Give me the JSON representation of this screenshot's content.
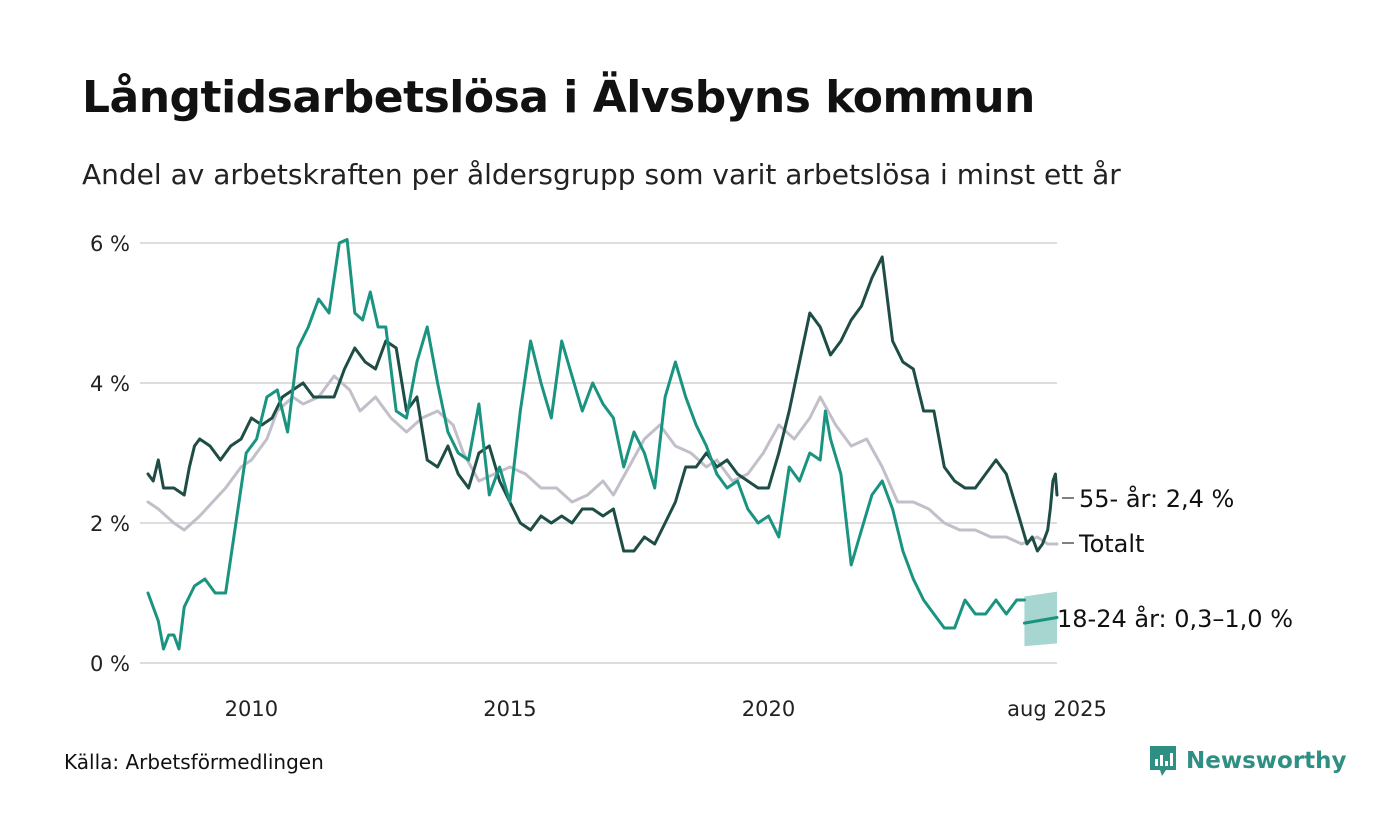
{
  "title": "Långtidsarbetslösa i Älvsbyns kommun",
  "subtitle": "Andel av arbetskraften per åldersgrupp som varit arbetslösa i minst ett år",
  "source": "Källa: Arbetsförmedlingen",
  "brand": "Newsworthy",
  "colors": {
    "older": "#1e4d45",
    "young": "#1a9480",
    "total": "#c2bfca",
    "band": "#a6d6cf",
    "grid": "#dddddd",
    "brand": "#2f8f83"
  },
  "chart_data": {
    "type": "line",
    "title": "Långtidsarbetslösa i Älvsbyns kommun",
    "ylim": [
      0,
      6
    ],
    "yticks": [
      0,
      2,
      4,
      6
    ],
    "ytick_labels": [
      "0 %",
      "2 %",
      "4 %",
      "6 %"
    ],
    "xlim": [
      2008.0,
      2025.58
    ],
    "xticks": [
      2010,
      2015,
      2020,
      2025.58
    ],
    "xtick_labels": [
      "2010",
      "2015",
      "2020",
      "aug 2025"
    ],
    "grid": true,
    "legend": "end-labels",
    "series": [
      {
        "name": "Totalt",
        "end_label": "Totalt",
        "color_key": "total",
        "points": [
          [
            2008.0,
            2.3
          ],
          [
            2008.2,
            2.2
          ],
          [
            2008.5,
            2.0
          ],
          [
            2008.7,
            1.9
          ],
          [
            2009.0,
            2.1
          ],
          [
            2009.5,
            2.5
          ],
          [
            2009.8,
            2.8
          ],
          [
            2010.0,
            2.9
          ],
          [
            2010.3,
            3.2
          ],
          [
            2010.5,
            3.6
          ],
          [
            2010.8,
            3.8
          ],
          [
            2011.0,
            3.7
          ],
          [
            2011.3,
            3.8
          ],
          [
            2011.6,
            4.1
          ],
          [
            2011.9,
            3.9
          ],
          [
            2012.1,
            3.6
          ],
          [
            2012.4,
            3.8
          ],
          [
            2012.7,
            3.5
          ],
          [
            2013.0,
            3.3
          ],
          [
            2013.3,
            3.5
          ],
          [
            2013.6,
            3.6
          ],
          [
            2013.9,
            3.4
          ],
          [
            2014.1,
            3.0
          ],
          [
            2014.4,
            2.6
          ],
          [
            2014.7,
            2.7
          ],
          [
            2015.0,
            2.8
          ],
          [
            2015.3,
            2.7
          ],
          [
            2015.6,
            2.5
          ],
          [
            2015.9,
            2.5
          ],
          [
            2016.2,
            2.3
          ],
          [
            2016.5,
            2.4
          ],
          [
            2016.8,
            2.6
          ],
          [
            2017.0,
            2.4
          ],
          [
            2017.3,
            2.8
          ],
          [
            2017.6,
            3.2
          ],
          [
            2017.9,
            3.4
          ],
          [
            2018.2,
            3.1
          ],
          [
            2018.5,
            3.0
          ],
          [
            2018.8,
            2.8
          ],
          [
            2019.0,
            2.9
          ],
          [
            2019.3,
            2.6
          ],
          [
            2019.6,
            2.7
          ],
          [
            2019.9,
            3.0
          ],
          [
            2020.2,
            3.4
          ],
          [
            2020.5,
            3.2
          ],
          [
            2020.8,
            3.5
          ],
          [
            2021.0,
            3.8
          ],
          [
            2021.3,
            3.4
          ],
          [
            2021.6,
            3.1
          ],
          [
            2021.9,
            3.2
          ],
          [
            2022.2,
            2.8
          ],
          [
            2022.5,
            2.3
          ],
          [
            2022.8,
            2.3
          ],
          [
            2023.1,
            2.2
          ],
          [
            2023.4,
            2.0
          ],
          [
            2023.7,
            1.9
          ],
          [
            2024.0,
            1.9
          ],
          [
            2024.3,
            1.8
          ],
          [
            2024.6,
            1.8
          ],
          [
            2024.9,
            1.7
          ],
          [
            2025.2,
            1.8
          ],
          [
            2025.4,
            1.7
          ],
          [
            2025.58,
            1.7
          ]
        ]
      },
      {
        "name": "55- år",
        "end_label": "55- år: 2,4 %",
        "color_key": "older",
        "points": [
          [
            2008.0,
            2.7
          ],
          [
            2008.1,
            2.6
          ],
          [
            2008.2,
            2.9
          ],
          [
            2008.3,
            2.5
          ],
          [
            2008.5,
            2.5
          ],
          [
            2008.7,
            2.4
          ],
          [
            2008.8,
            2.8
          ],
          [
            2008.9,
            3.1
          ],
          [
            2009.0,
            3.2
          ],
          [
            2009.2,
            3.1
          ],
          [
            2009.4,
            2.9
          ],
          [
            2009.6,
            3.1
          ],
          [
            2009.8,
            3.2
          ],
          [
            2010.0,
            3.5
          ],
          [
            2010.2,
            3.4
          ],
          [
            2010.4,
            3.5
          ],
          [
            2010.6,
            3.8
          ],
          [
            2010.8,
            3.9
          ],
          [
            2011.0,
            4.0
          ],
          [
            2011.2,
            3.8
          ],
          [
            2011.4,
            3.8
          ],
          [
            2011.6,
            3.8
          ],
          [
            2011.8,
            4.2
          ],
          [
            2012.0,
            4.5
          ],
          [
            2012.2,
            4.3
          ],
          [
            2012.4,
            4.2
          ],
          [
            2012.6,
            4.6
          ],
          [
            2012.8,
            4.5
          ],
          [
            2013.0,
            3.6
          ],
          [
            2013.2,
            3.8
          ],
          [
            2013.4,
            2.9
          ],
          [
            2013.6,
            2.8
          ],
          [
            2013.8,
            3.1
          ],
          [
            2014.0,
            2.7
          ],
          [
            2014.2,
            2.5
          ],
          [
            2014.4,
            3.0
          ],
          [
            2014.6,
            3.1
          ],
          [
            2014.8,
            2.6
          ],
          [
            2015.0,
            2.3
          ],
          [
            2015.2,
            2.0
          ],
          [
            2015.4,
            1.9
          ],
          [
            2015.6,
            2.1
          ],
          [
            2015.8,
            2.0
          ],
          [
            2016.0,
            2.1
          ],
          [
            2016.2,
            2.0
          ],
          [
            2016.4,
            2.2
          ],
          [
            2016.6,
            2.2
          ],
          [
            2016.8,
            2.1
          ],
          [
            2017.0,
            2.2
          ],
          [
            2017.2,
            1.6
          ],
          [
            2017.4,
            1.6
          ],
          [
            2017.6,
            1.8
          ],
          [
            2017.8,
            1.7
          ],
          [
            2018.0,
            2.0
          ],
          [
            2018.2,
            2.3
          ],
          [
            2018.4,
            2.8
          ],
          [
            2018.6,
            2.8
          ],
          [
            2018.8,
            3.0
          ],
          [
            2019.0,
            2.8
          ],
          [
            2019.2,
            2.9
          ],
          [
            2019.4,
            2.7
          ],
          [
            2019.6,
            2.6
          ],
          [
            2019.8,
            2.5
          ],
          [
            2020.0,
            2.5
          ],
          [
            2020.2,
            3.0
          ],
          [
            2020.4,
            3.6
          ],
          [
            2020.6,
            4.3
          ],
          [
            2020.8,
            5.0
          ],
          [
            2021.0,
            4.8
          ],
          [
            2021.2,
            4.4
          ],
          [
            2021.4,
            4.6
          ],
          [
            2021.6,
            4.9
          ],
          [
            2021.8,
            5.1
          ],
          [
            2022.0,
            5.5
          ],
          [
            2022.2,
            5.8
          ],
          [
            2022.4,
            4.6
          ],
          [
            2022.6,
            4.3
          ],
          [
            2022.8,
            4.2
          ],
          [
            2023.0,
            3.6
          ],
          [
            2023.2,
            3.6
          ],
          [
            2023.4,
            2.8
          ],
          [
            2023.6,
            2.6
          ],
          [
            2023.8,
            2.5
          ],
          [
            2024.0,
            2.5
          ],
          [
            2024.2,
            2.7
          ],
          [
            2024.4,
            2.9
          ],
          [
            2024.6,
            2.7
          ],
          [
            2024.8,
            2.2
          ],
          [
            2025.0,
            1.7
          ],
          [
            2025.1,
            1.8
          ],
          [
            2025.2,
            1.6
          ],
          [
            2025.3,
            1.7
          ],
          [
            2025.4,
            1.9
          ],
          [
            2025.45,
            2.2
          ],
          [
            2025.5,
            2.6
          ],
          [
            2025.55,
            2.7
          ],
          [
            2025.58,
            2.4
          ]
        ]
      },
      {
        "name": "18-24 år",
        "end_label": "18-24 år: 0,3–1,0 %",
        "color_key": "young",
        "points": [
          [
            2008.0,
            1.0
          ],
          [
            2008.2,
            0.6
          ],
          [
            2008.3,
            0.2
          ],
          [
            2008.4,
            0.4
          ],
          [
            2008.5,
            0.4
          ],
          [
            2008.6,
            0.2
          ],
          [
            2008.7,
            0.8
          ],
          [
            2008.9,
            1.1
          ],
          [
            2009.1,
            1.2
          ],
          [
            2009.3,
            1.0
          ],
          [
            2009.5,
            1.0
          ],
          [
            2009.7,
            2.0
          ],
          [
            2009.9,
            3.0
          ],
          [
            2010.1,
            3.2
          ],
          [
            2010.3,
            3.8
          ],
          [
            2010.5,
            3.9
          ],
          [
            2010.7,
            3.3
          ],
          [
            2010.9,
            4.5
          ],
          [
            2011.1,
            4.8
          ],
          [
            2011.3,
            5.2
          ],
          [
            2011.5,
            5.0
          ],
          [
            2011.7,
            6.0
          ],
          [
            2011.85,
            6.05
          ],
          [
            2012.0,
            5.0
          ],
          [
            2012.15,
            4.9
          ],
          [
            2012.3,
            5.3
          ],
          [
            2012.45,
            4.8
          ],
          [
            2012.6,
            4.8
          ],
          [
            2012.8,
            3.6
          ],
          [
            2013.0,
            3.5
          ],
          [
            2013.2,
            4.3
          ],
          [
            2013.4,
            4.8
          ],
          [
            2013.6,
            4.0
          ],
          [
            2013.8,
            3.3
          ],
          [
            2014.0,
            3.0
          ],
          [
            2014.2,
            2.9
          ],
          [
            2014.4,
            3.7
          ],
          [
            2014.6,
            2.4
          ],
          [
            2014.8,
            2.8
          ],
          [
            2015.0,
            2.3
          ],
          [
            2015.2,
            3.6
          ],
          [
            2015.4,
            4.6
          ],
          [
            2015.6,
            4.0
          ],
          [
            2015.8,
            3.5
          ],
          [
            2016.0,
            4.6
          ],
          [
            2016.2,
            4.1
          ],
          [
            2016.4,
            3.6
          ],
          [
            2016.6,
            4.0
          ],
          [
            2016.8,
            3.7
          ],
          [
            2017.0,
            3.5
          ],
          [
            2017.2,
            2.8
          ],
          [
            2017.4,
            3.3
          ],
          [
            2017.6,
            3.0
          ],
          [
            2017.8,
            2.5
          ],
          [
            2018.0,
            3.8
          ],
          [
            2018.2,
            4.3
          ],
          [
            2018.4,
            3.8
          ],
          [
            2018.6,
            3.4
          ],
          [
            2018.8,
            3.1
          ],
          [
            2019.0,
            2.7
          ],
          [
            2019.2,
            2.5
          ],
          [
            2019.4,
            2.6
          ],
          [
            2019.6,
            2.2
          ],
          [
            2019.8,
            2.0
          ],
          [
            2020.0,
            2.1
          ],
          [
            2020.2,
            1.8
          ],
          [
            2020.4,
            2.8
          ],
          [
            2020.6,
            2.6
          ],
          [
            2020.8,
            3.0
          ],
          [
            2021.0,
            2.9
          ],
          [
            2021.1,
            3.6
          ],
          [
            2021.2,
            3.2
          ],
          [
            2021.4,
            2.7
          ],
          [
            2021.6,
            1.4
          ],
          [
            2021.8,
            1.9
          ],
          [
            2022.0,
            2.4
          ],
          [
            2022.2,
            2.6
          ],
          [
            2022.4,
            2.2
          ],
          [
            2022.6,
            1.6
          ],
          [
            2022.8,
            1.2
          ],
          [
            2023.0,
            0.9
          ],
          [
            2023.2,
            0.7
          ],
          [
            2023.4,
            0.5
          ],
          [
            2023.6,
            0.5
          ],
          [
            2023.8,
            0.9
          ],
          [
            2024.0,
            0.7
          ],
          [
            2024.2,
            0.7
          ],
          [
            2024.4,
            0.9
          ],
          [
            2024.6,
            0.7
          ],
          [
            2024.8,
            0.9
          ],
          [
            2024.95,
            0.9
          ]
        ]
      },
      {
        "name": "18-24 år",
        "end_label": "",
        "color_key": "young",
        "points": [
          [
            2024.95,
            0.57
          ],
          [
            2025.58,
            0.65
          ]
        ],
        "band_lower": [
          [
            2024.95,
            0.24
          ],
          [
            2025.58,
            0.28
          ]
        ],
        "band_upper": [
          [
            2024.95,
            0.95
          ],
          [
            2025.58,
            1.02
          ]
        ]
      }
    ]
  }
}
